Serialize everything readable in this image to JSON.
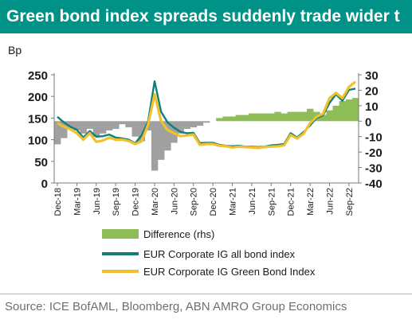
{
  "header": {
    "title": "Green bond index spreads suddenly trade wider t"
  },
  "footer": {
    "source": "Source: ICE BofAML, Bloomberg,  ABN AMRO Group Economics"
  },
  "colors": {
    "title_bg": "#009286",
    "difference_fill": "#8cbd56",
    "difference_fill_negative": "#a0a0a0",
    "all_bond_line": "#117f78",
    "green_bond_line": "#f1c12d"
  },
  "chart_data": {
    "type": "line",
    "ylabel": "Bp",
    "ylim": [
      0,
      250
    ],
    "y_ticks": [
      "0",
      "50",
      "100",
      "150",
      "200",
      "250"
    ],
    "y2lim": [
      -40,
      30
    ],
    "y2_ticks": [
      "-40",
      "-30",
      "-20",
      "-10",
      "0",
      "10",
      "20",
      "30"
    ],
    "x_ticks": [
      "Dec-18",
      "Mar-19",
      "Jun-19",
      "Sep-19",
      "Dec-19",
      "Mar-20",
      "Jun-20",
      "Sep-20",
      "Dec-20",
      "Mar-21",
      "Jun-21",
      "Sep-21",
      "Dec-21",
      "Mar-22",
      "Jun-22",
      "Sep-22"
    ],
    "x": [
      "Dec-18",
      "Jan-19",
      "Feb-19",
      "Mar-19",
      "Apr-19",
      "May-19",
      "Jun-19",
      "Jul-19",
      "Aug-19",
      "Sep-19",
      "Oct-19",
      "Nov-19",
      "Dec-19",
      "Jan-20",
      "Feb-20",
      "Mar-20",
      "Apr-20",
      "May-20",
      "Jun-20",
      "Jul-20",
      "Aug-20",
      "Sep-20",
      "Oct-20",
      "Nov-20",
      "Dec-20",
      "Jan-21",
      "Feb-21",
      "Mar-21",
      "Apr-21",
      "May-21",
      "Jun-21",
      "Jul-21",
      "Aug-21",
      "Sep-21",
      "Oct-21",
      "Nov-21",
      "Dec-21",
      "Jan-22",
      "Feb-22",
      "Mar-22",
      "Apr-22",
      "May-22",
      "Jun-22",
      "Jul-22",
      "Aug-22",
      "Sep-22",
      "Oct-22"
    ],
    "series": [
      {
        "name": "Difference (rhs)",
        "axis": "right",
        "kind": "area",
        "values": [
          -15,
          -11,
          -5,
          -6,
          -8,
          -5,
          -10,
          -8,
          -6,
          -5,
          -2,
          -4,
          -10,
          -13,
          -6,
          -32,
          -25,
          -19,
          -14,
          -8,
          -5,
          -4,
          -3,
          -1,
          0,
          2,
          3,
          3,
          4,
          4,
          5,
          5,
          5,
          5,
          6,
          5,
          6,
          6,
          6,
          8,
          6,
          4,
          7,
          10,
          13,
          14,
          15
        ]
      },
      {
        "name": "EUR Corporate IG all bond index",
        "axis": "left",
        "kind": "line",
        "values": [
          153,
          140,
          130,
          123,
          105,
          120,
          107,
          108,
          112,
          105,
          103,
          100,
          92,
          110,
          142,
          235,
          165,
          140,
          128,
          118,
          115,
          116,
          92,
          93,
          93,
          88,
          86,
          85,
          86,
          84,
          84,
          83,
          84,
          87,
          88,
          90,
          115,
          105,
          118,
          133,
          150,
          156,
          185,
          205,
          190,
          215,
          218
        ]
      },
      {
        "name": "EUR Corporate IG Green Bond Index",
        "axis": "left",
        "kind": "line",
        "values": [
          138,
          130,
          124,
          115,
          100,
          115,
          95,
          98,
          105,
          100,
          100,
          97,
          90,
          96,
          135,
          205,
          143,
          122,
          115,
          108,
          110,
          112,
          88,
          90,
          90,
          86,
          85,
          82,
          84,
          83,
          82,
          81,
          83,
          84,
          85,
          87,
          111,
          103,
          114,
          138,
          153,
          160,
          196,
          208,
          196,
          222,
          234
        ]
      }
    ],
    "legend": "bottom",
    "grid": false
  }
}
